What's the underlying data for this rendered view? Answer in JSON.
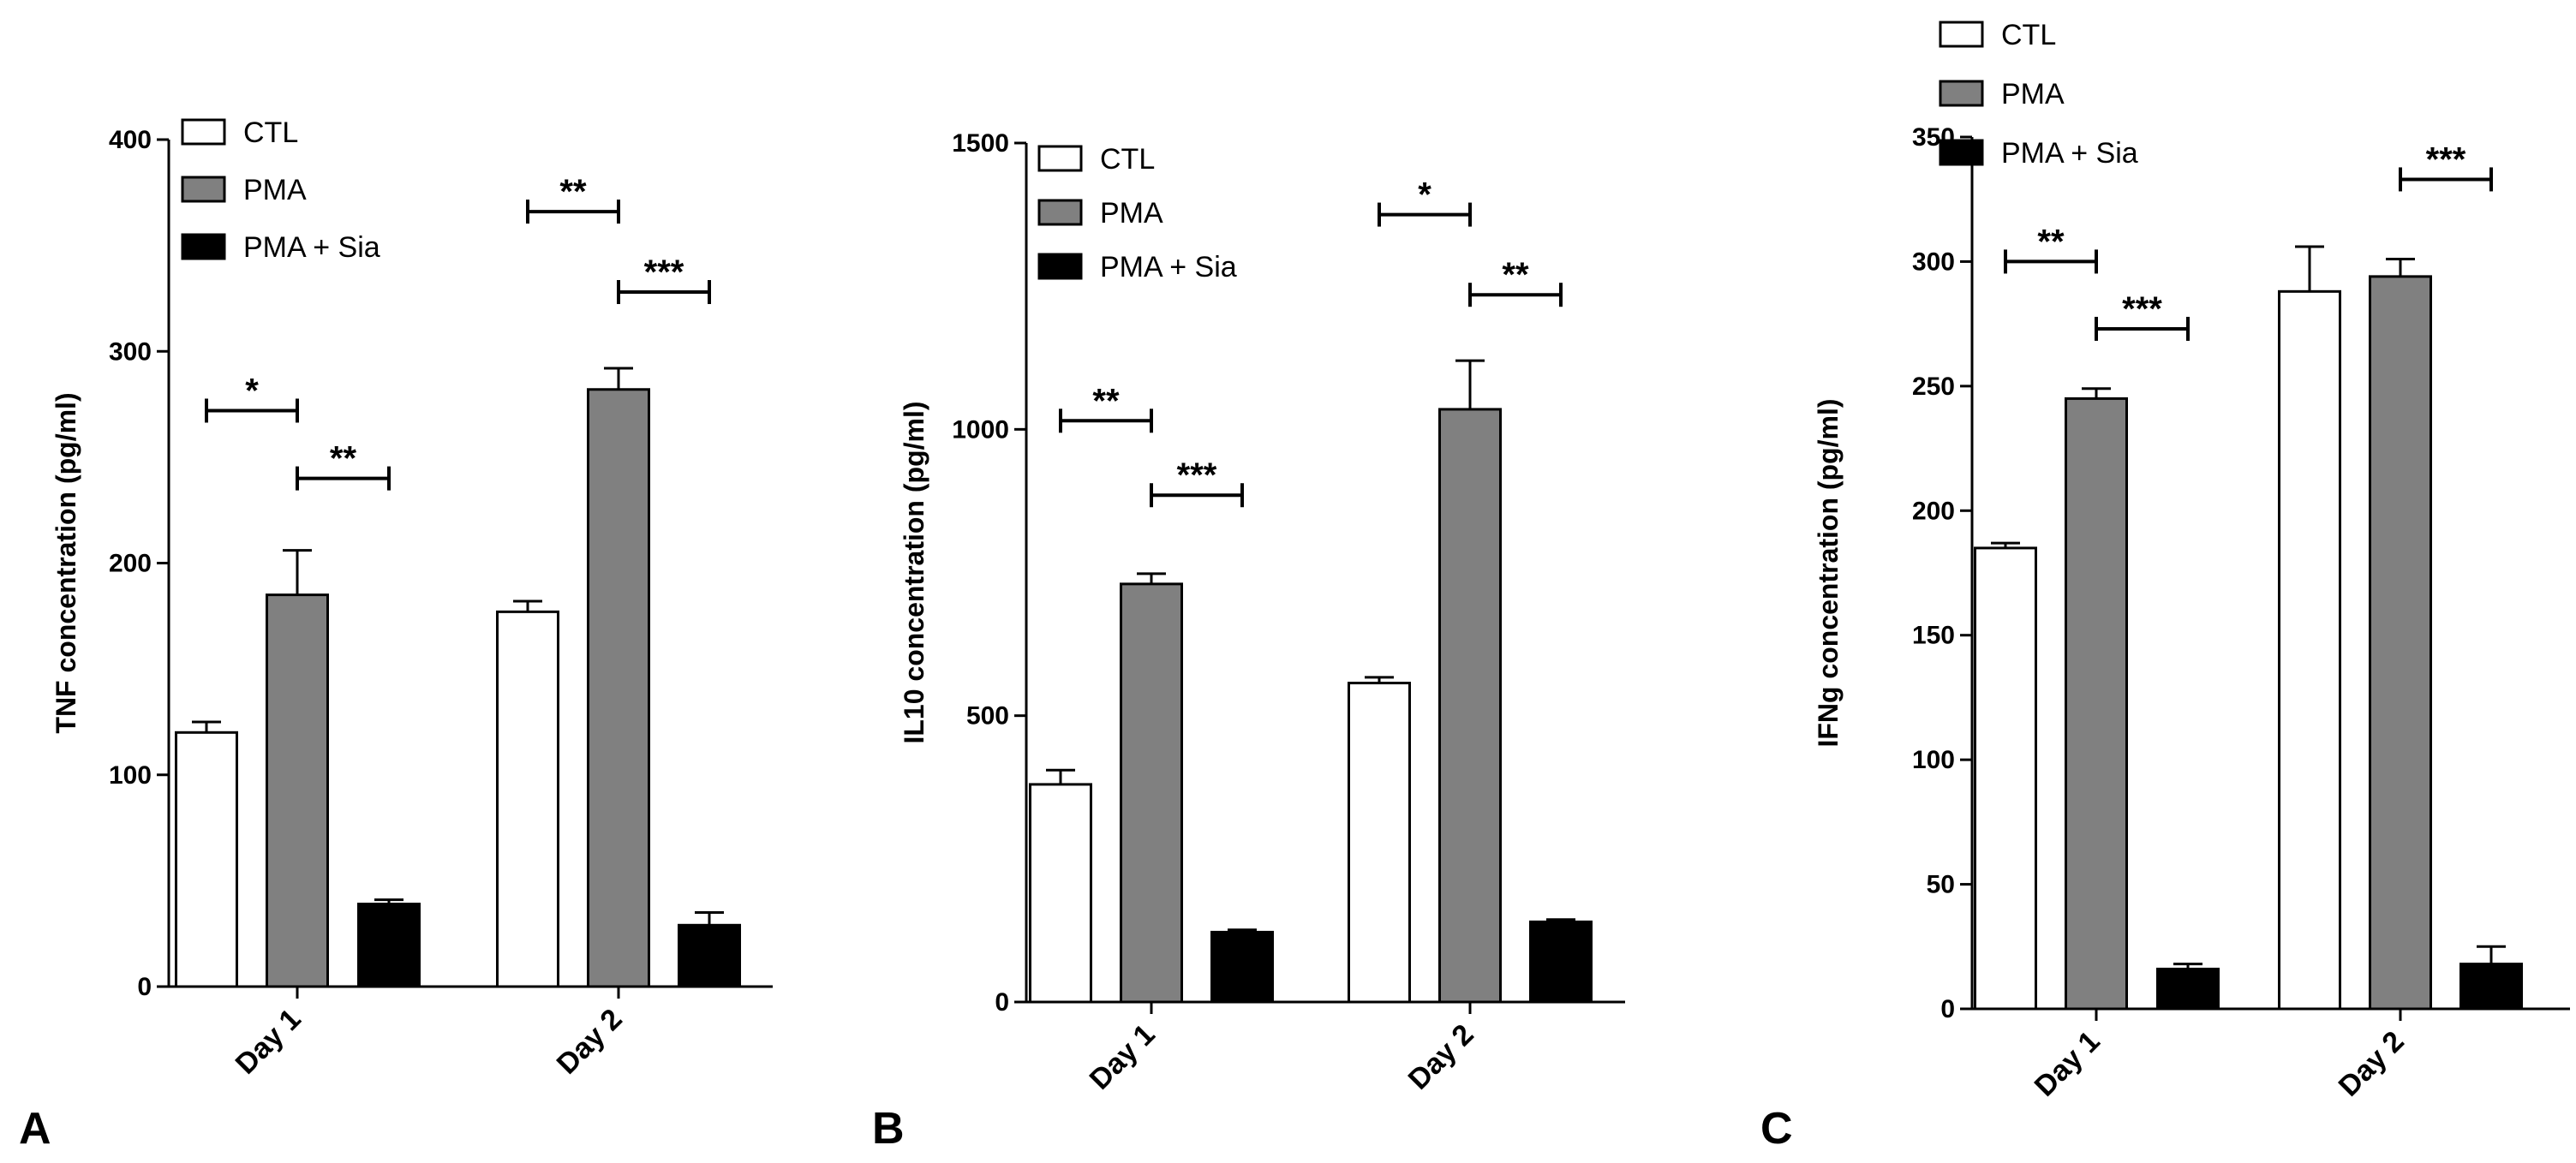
{
  "colors": {
    "CTL": "#ffffff",
    "PMA": "#808080",
    "PMA + Sia": "#000000",
    "stroke": "#000000"
  },
  "chart_data": [
    {
      "type": "bar",
      "panel": "A",
      "ylabel": "TNF concentration (pg/ml)",
      "ylim": [
        0,
        400
      ],
      "yticks": [
        0,
        100,
        200,
        300,
        400
      ],
      "categories": [
        "Day 1",
        "Day 2"
      ],
      "series": [
        {
          "name": "CTL",
          "values": [
            120,
            177
          ],
          "errors": [
            5,
            5
          ]
        },
        {
          "name": "PMA",
          "values": [
            185,
            282
          ],
          "errors": [
            21,
            10
          ]
        },
        {
          "name": "PMA + Sia",
          "values": [
            39,
            29
          ],
          "errors": [
            2,
            6
          ]
        }
      ],
      "legend": [
        "CTL",
        "PMA",
        "PMA + Sia"
      ],
      "legend_position": "top-left",
      "significance": [
        {
          "category": "Day 1",
          "from": "CTL",
          "to": "PMA",
          "label": "*",
          "level": 272
        },
        {
          "category": "Day 1",
          "from": "PMA",
          "to": "PMA + Sia",
          "label": "**",
          "level": 240
        },
        {
          "category": "Day 2",
          "from": "CTL",
          "to": "PMA",
          "label": "**",
          "level": 366
        },
        {
          "category": "Day 2",
          "from": "PMA",
          "to": "PMA + Sia",
          "label": "***",
          "level": 328
        }
      ]
    },
    {
      "type": "bar",
      "panel": "B",
      "ylabel": "IL10 concentration (pg/ml)",
      "ylim": [
        0,
        1500
      ],
      "yticks": [
        0,
        500,
        1000,
        1500
      ],
      "categories": [
        "Day 1",
        "Day 2"
      ],
      "series": [
        {
          "name": "CTL",
          "values": [
            380,
            557
          ],
          "errors": [
            25,
            10
          ]
        },
        {
          "name": "PMA",
          "values": [
            730,
            1035
          ],
          "errors": [
            18,
            85
          ]
        },
        {
          "name": "PMA + Sia",
          "values": [
            122,
            140
          ],
          "errors": [
            4,
            4
          ]
        }
      ],
      "legend": [
        "CTL",
        "PMA",
        "PMA + Sia"
      ],
      "legend_position": "top-left",
      "significance": [
        {
          "category": "Day 1",
          "from": "CTL",
          "to": "PMA",
          "label": "**",
          "level": 1015
        },
        {
          "category": "Day 1",
          "from": "PMA",
          "to": "PMA + Sia",
          "label": "***",
          "level": 885
        },
        {
          "category": "Day 2",
          "from": "CTL",
          "to": "PMA",
          "label": "*",
          "level": 1375
        },
        {
          "category": "Day 2",
          "from": "PMA",
          "to": "PMA + Sia",
          "label": "**",
          "level": 1235
        }
      ]
    },
    {
      "type": "bar",
      "panel": "C",
      "ylabel": "IFNg concentration (pg/ml)",
      "ylim": [
        0,
        350
      ],
      "yticks": [
        0,
        50,
        100,
        150,
        200,
        250,
        300,
        350
      ],
      "categories": [
        "Day 1",
        "Day 2"
      ],
      "series": [
        {
          "name": "CTL",
          "values": [
            185,
            288
          ],
          "errors": [
            2,
            18
          ]
        },
        {
          "name": "PMA",
          "values": [
            245,
            294
          ],
          "errors": [
            4,
            7
          ]
        },
        {
          "name": "PMA + Sia",
          "values": [
            16,
            18
          ],
          "errors": [
            2,
            7
          ]
        }
      ],
      "legend": [
        "CTL",
        "PMA",
        "PMA + Sia"
      ],
      "legend_position": "top-left",
      "significance": [
        {
          "category": "Day 1",
          "from": "CTL",
          "to": "PMA",
          "label": "**",
          "level": 300
        },
        {
          "category": "Day 1",
          "from": "PMA",
          "to": "PMA + Sia",
          "label": "***",
          "level": 273
        },
        {
          "category": "Day 2",
          "from": "PMA",
          "to": "PMA + Sia",
          "label": "***",
          "level": 333
        }
      ]
    }
  ]
}
